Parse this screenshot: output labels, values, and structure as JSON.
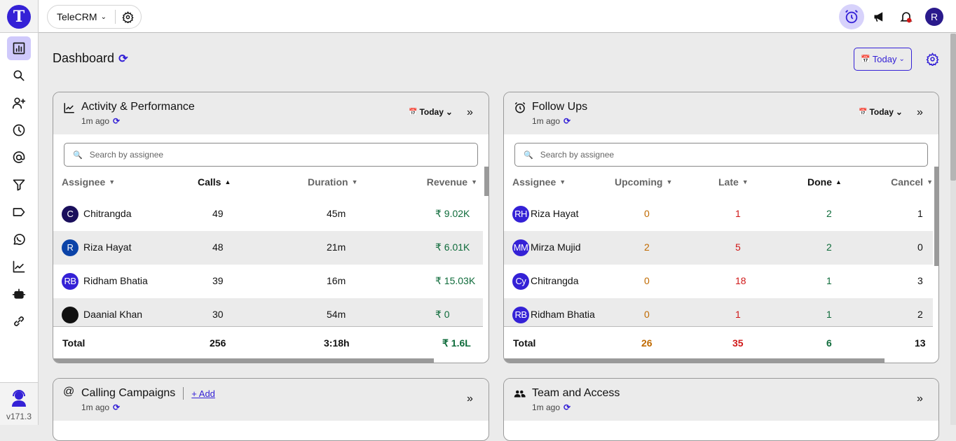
{
  "app": {
    "logo_letter": "T",
    "workspace": "TeleCRM",
    "version": "v171.3",
    "user_initial": "R"
  },
  "colors": {
    "accent": "#3421d6",
    "upcoming": "#c06a00",
    "late": "#d01818",
    "done": "#0e6b3a",
    "revenue": "#0e6b3a"
  },
  "sidebar": {
    "items": [
      {
        "icon": "bar-chart-icon",
        "active": true
      },
      {
        "icon": "search-icon"
      },
      {
        "icon": "add-user-icon"
      },
      {
        "icon": "clock-icon"
      },
      {
        "icon": "at-icon"
      },
      {
        "icon": "filter-icon"
      },
      {
        "icon": "tag-icon"
      },
      {
        "icon": "whatsapp-icon"
      },
      {
        "icon": "trending-chart-icon"
      },
      {
        "icon": "robot-icon"
      },
      {
        "icon": "link-icon"
      }
    ]
  },
  "page": {
    "title": "Dashboard",
    "date_filter": "Today"
  },
  "activity": {
    "title": "Activity & Performance",
    "updated": "1m ago",
    "date_filter": "Today",
    "search_placeholder": "Search by assignee",
    "columns": [
      "Assignee",
      "Calls",
      "Duration",
      "Revenue"
    ],
    "sorted_column": "Calls",
    "rows": [
      {
        "initials": "C",
        "avatar_color": "#1a0f5c",
        "name": "Chitrangda",
        "calls": "49",
        "duration": "45m",
        "revenue": "₹ 9.02K"
      },
      {
        "initials": "R",
        "avatar_color": "#0b43a8",
        "name": "Riza Hayat",
        "calls": "48",
        "duration": "21m",
        "revenue": "₹ 6.01K"
      },
      {
        "initials": "RB",
        "avatar_color": "#3421d6",
        "name": "Ridham Bhatia",
        "calls": "39",
        "duration": "16m",
        "revenue": "₹ 15.03K"
      },
      {
        "initials": "",
        "avatar_color": "#111111",
        "name": "Daanial Khan",
        "calls": "30",
        "duration": "54m",
        "revenue": "₹ 0"
      }
    ],
    "total": {
      "label": "Total",
      "calls": "256",
      "duration": "3:18h",
      "revenue": "₹ 1.6L"
    }
  },
  "followups": {
    "title": "Follow Ups",
    "updated": "1m ago",
    "date_filter": "Today",
    "search_placeholder": "Search by assignee",
    "columns": [
      "Assignee",
      "Upcoming",
      "Late",
      "Done",
      "Cancel"
    ],
    "sorted_column": "Done",
    "rows": [
      {
        "initials": "RH",
        "name": "Riza Hayat",
        "upcoming": "0",
        "late": "1",
        "done": "2",
        "cancel": "1"
      },
      {
        "initials": "MM",
        "name": "Mirza Mujid",
        "upcoming": "2",
        "late": "5",
        "done": "2",
        "cancel": "0"
      },
      {
        "initials": "Cy",
        "name": "Chitrangda",
        "upcoming": "0",
        "late": "18",
        "done": "1",
        "cancel": "3"
      },
      {
        "initials": "RB",
        "name": "Ridham Bhatia",
        "upcoming": "0",
        "late": "1",
        "done": "1",
        "cancel": "2"
      }
    ],
    "total": {
      "label": "Total",
      "upcoming": "26",
      "late": "35",
      "done": "6",
      "cancel": "13"
    }
  },
  "campaigns": {
    "title": "Calling Campaigns",
    "add_label": "+ Add",
    "updated": "1m ago"
  },
  "team": {
    "title": "Team and Access",
    "updated": "1m ago"
  }
}
